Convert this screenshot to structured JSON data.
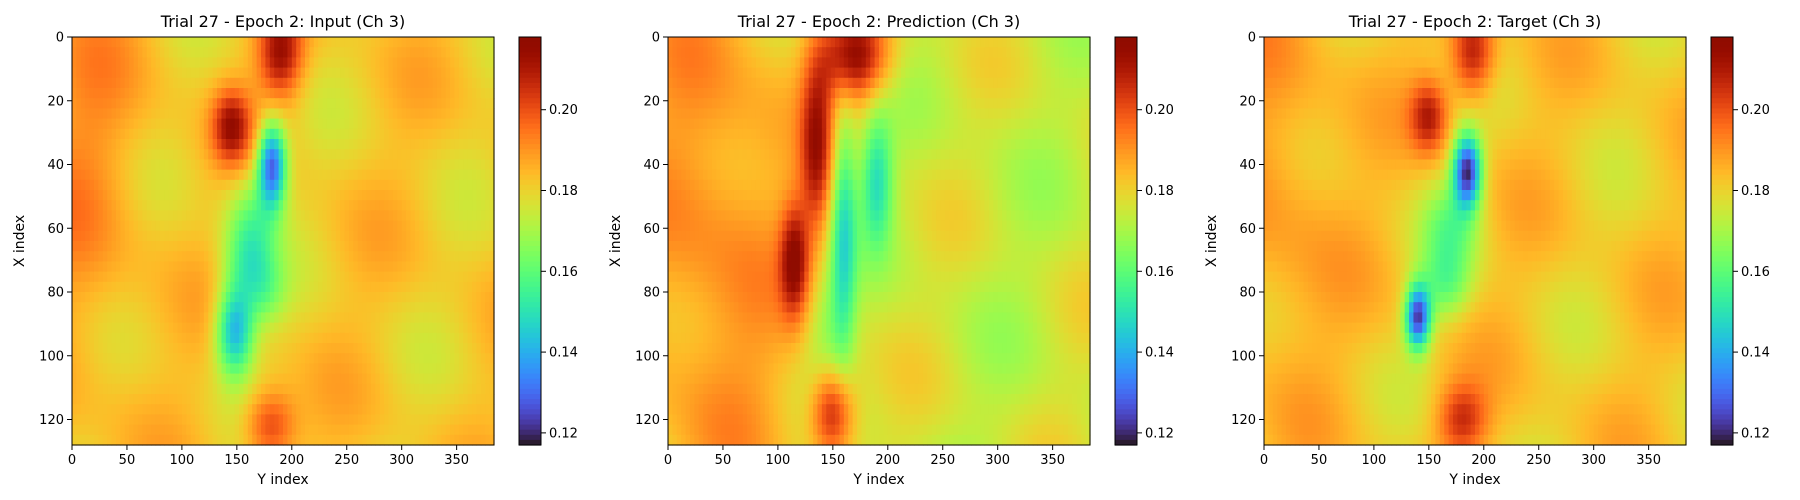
{
  "chart_data": [
    {
      "type": "heatmap",
      "title": "Trial 27 - Epoch 2: Input (Ch 3)",
      "xlabel": "Y index",
      "ylabel": "X index",
      "xlim": [
        0,
        384
      ],
      "ylim": [
        128,
        0
      ],
      "xticks": [
        0,
        50,
        100,
        150,
        200,
        250,
        300,
        350
      ],
      "yticks": [
        0,
        20,
        40,
        60,
        80,
        100,
        120
      ],
      "colormap": "turbo",
      "color_range": [
        0.117,
        0.218
      ],
      "colorbar_ticks": [
        0.12,
        0.14,
        0.16,
        0.18,
        0.2
      ],
      "background_value": 0.182,
      "features": [
        {
          "x": 190,
          "y": 5,
          "sx": 14,
          "sy": 10,
          "value": 0.212
        },
        {
          "x": 145,
          "y": 28,
          "sx": 12,
          "sy": 8,
          "value": 0.21
        },
        {
          "x": 182,
          "y": 40,
          "sx": 9,
          "sy": 9,
          "value": 0.128
        },
        {
          "x": 165,
          "y": 55,
          "sx": 18,
          "sy": 10,
          "value": 0.165
        },
        {
          "x": 160,
          "y": 70,
          "sx": 16,
          "sy": 9,
          "value": 0.162
        },
        {
          "x": 148,
          "y": 92,
          "sx": 12,
          "sy": 10,
          "value": 0.14
        },
        {
          "x": 175,
          "y": 80,
          "sx": 14,
          "sy": 8,
          "value": 0.168
        },
        {
          "x": 180,
          "y": 122,
          "sx": 16,
          "sy": 8,
          "value": 0.205
        },
        {
          "x": 10,
          "y": 40,
          "sx": 40,
          "sy": 50,
          "value": 0.19
        }
      ]
    },
    {
      "type": "heatmap",
      "title": "Trial 27 - Epoch 2: Prediction (Ch 3)",
      "xlabel": "Y index",
      "ylabel": "X index",
      "xlim": [
        0,
        384
      ],
      "ylim": [
        128,
        0
      ],
      "xticks": [
        0,
        50,
        100,
        150,
        200,
        250,
        300,
        350
      ],
      "yticks": [
        0,
        20,
        40,
        60,
        80,
        100,
        120
      ],
      "colormap": "turbo",
      "color_range": [
        0.117,
        0.218
      ],
      "colorbar_ticks": [
        0.12,
        0.14,
        0.16,
        0.18,
        0.2
      ],
      "background_value": 0.176,
      "features": [
        {
          "x": 170,
          "y": 6,
          "sx": 22,
          "sy": 10,
          "value": 0.215
        },
        {
          "x": 135,
          "y": 35,
          "sx": 10,
          "sy": 20,
          "value": 0.205
        },
        {
          "x": 190,
          "y": 45,
          "sx": 10,
          "sy": 14,
          "value": 0.15
        },
        {
          "x": 160,
          "y": 60,
          "sx": 8,
          "sy": 28,
          "value": 0.15
        },
        {
          "x": 115,
          "y": 70,
          "sx": 9,
          "sy": 12,
          "value": 0.208
        },
        {
          "x": 145,
          "y": 90,
          "sx": 14,
          "sy": 14,
          "value": 0.165
        },
        {
          "x": 150,
          "y": 118,
          "sx": 14,
          "sy": 10,
          "value": 0.21
        },
        {
          "x": 40,
          "y": 60,
          "sx": 60,
          "sy": 80,
          "value": 0.192
        },
        {
          "x": 300,
          "y": 60,
          "sx": 80,
          "sy": 80,
          "value": 0.174
        }
      ]
    },
    {
      "type": "heatmap",
      "title": "Trial 27 - Epoch 2: Target (Ch 3)",
      "xlabel": "Y index",
      "ylabel": "X index",
      "xlim": [
        0,
        384
      ],
      "ylim": [
        128,
        0
      ],
      "xticks": [
        0,
        50,
        100,
        150,
        200,
        250,
        300,
        350
      ],
      "yticks": [
        0,
        20,
        40,
        60,
        80,
        100,
        120
      ],
      "colormap": "turbo",
      "color_range": [
        0.117,
        0.218
      ],
      "colorbar_ticks": [
        0.12,
        0.14,
        0.16,
        0.18,
        0.2
      ],
      "background_value": 0.182,
      "features": [
        {
          "x": 190,
          "y": 5,
          "sx": 14,
          "sy": 10,
          "value": 0.212
        },
        {
          "x": 150,
          "y": 25,
          "sx": 12,
          "sy": 8,
          "value": 0.208
        },
        {
          "x": 185,
          "y": 42,
          "sx": 9,
          "sy": 8,
          "value": 0.122
        },
        {
          "x": 170,
          "y": 60,
          "sx": 18,
          "sy": 10,
          "value": 0.165
        },
        {
          "x": 165,
          "y": 78,
          "sx": 16,
          "sy": 8,
          "value": 0.165
        },
        {
          "x": 140,
          "y": 88,
          "sx": 8,
          "sy": 7,
          "value": 0.125
        },
        {
          "x": 180,
          "y": 120,
          "sx": 16,
          "sy": 8,
          "value": 0.205
        },
        {
          "x": 10,
          "y": 40,
          "sx": 40,
          "sy": 50,
          "value": 0.19
        }
      ]
    }
  ]
}
